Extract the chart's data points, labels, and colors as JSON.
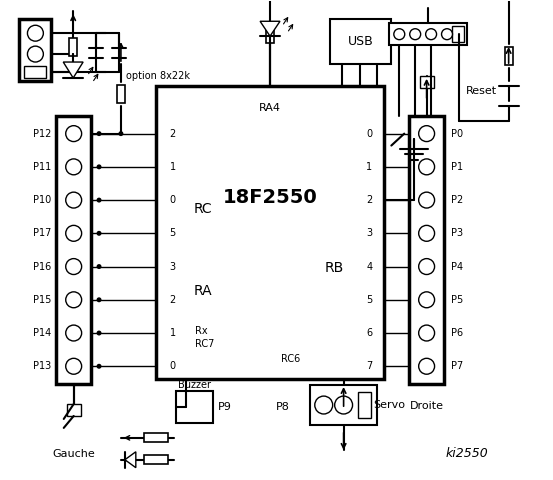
{
  "bg_color": "#ffffff",
  "chip_label": "18F2550",
  "ra4_label": "RA4",
  "rc_label": "RC",
  "ra_label": "RA",
  "rb_label": "RB",
  "rx_label": "Rx",
  "rc7_label": "RC7",
  "rc6_label": "RC6",
  "usb_label": "USB",
  "reset_label": "Reset",
  "gauche_label": "Gauche",
  "droite_label": "Droite",
  "servo_label": "Servo",
  "buzzer_label": "Buzzer",
  "option_label": "option 8x22k",
  "ki_label": "ki2550",
  "left_pins_labels": [
    "P12",
    "P11",
    "P10",
    "P17",
    "P16",
    "P15",
    "P14",
    "P13"
  ],
  "left_rc_nums": [
    "2",
    "1",
    "0",
    "5",
    "3",
    "2",
    "1",
    "0"
  ],
  "right_rb_nums": [
    "0",
    "1",
    "2",
    "3",
    "4",
    "5",
    "6",
    "7"
  ],
  "right_pins_labels": [
    "P0",
    "P1",
    "P2",
    "P3",
    "P4",
    "P5",
    "P6",
    "P7"
  ],
  "p9_label": "P9",
  "p8_label": "P8"
}
